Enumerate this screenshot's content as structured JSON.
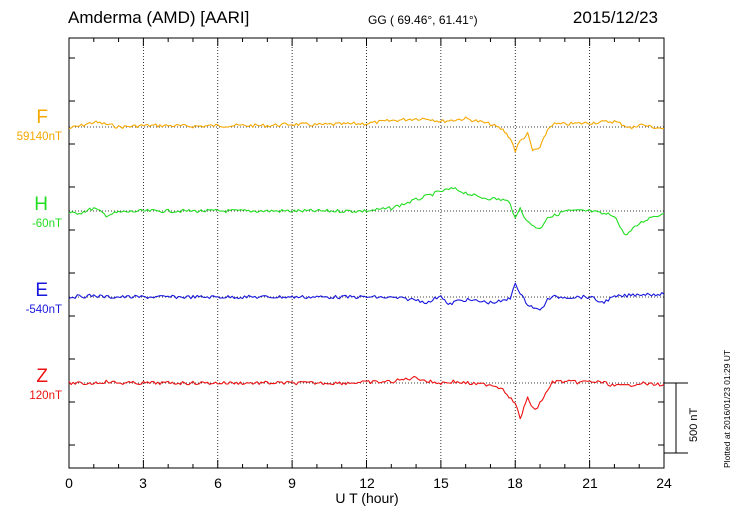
{
  "header": {
    "station": "Amderma (AMD)  [AARI]",
    "coords": "GG ( 69.46°,  61.41°)",
    "date": "2015/12/23"
  },
  "footer": {
    "plotted": "Plotted at 2016/01/23 01:29 UT",
    "scale": "500 nT"
  },
  "chart_data": {
    "type": "line",
    "xlabel": "U T (hour)",
    "xlim": [
      0,
      24
    ],
    "xticks": [
      "0",
      "3",
      "6",
      "9",
      "12",
      "15",
      "18",
      "21",
      "24"
    ],
    "scale_bar_nT": 500,
    "series": [
      {
        "name": "F",
        "baseline_label": "59140nT",
        "color": "#f5a800",
        "x": [
          0,
          0.5,
          1,
          1.5,
          2,
          3,
          4,
          5,
          6,
          7,
          8,
          9,
          10,
          11,
          12,
          13,
          14,
          14.5,
          15,
          15.5,
          16,
          16.5,
          17,
          17.5,
          17.8,
          18,
          18.2,
          18.5,
          18.7,
          19,
          19.3,
          19.5,
          20,
          21,
          22,
          22.3,
          22.7,
          23,
          23.5,
          24
        ],
        "y": [
          -10,
          10,
          35,
          20,
          0,
          10,
          10,
          5,
          10,
          10,
          10,
          20,
          15,
          20,
          25,
          45,
          60,
          60,
          40,
          50,
          60,
          40,
          20,
          -20,
          -80,
          -170,
          -100,
          -50,
          -170,
          -150,
          -20,
          20,
          20,
          30,
          40,
          20,
          -10,
          20,
          0,
          -10
        ]
      },
      {
        "name": "H",
        "baseline_label": "-60nT",
        "color": "#22dd22",
        "x": [
          0,
          0.5,
          1,
          1.5,
          2,
          3,
          4,
          5,
          6,
          7,
          8,
          9,
          10,
          11,
          12,
          13,
          13.5,
          14,
          14.5,
          15,
          15.5,
          16,
          16.5,
          17,
          17.5,
          17.8,
          18,
          18.2,
          18.5,
          19,
          19.3,
          19.5,
          20,
          21,
          21.5,
          22,
          22.3,
          22.5,
          23,
          23.5,
          24
        ],
        "y": [
          -20,
          -10,
          20,
          -30,
          -10,
          0,
          0,
          0,
          0,
          0,
          0,
          0,
          0,
          0,
          0,
          20,
          50,
          80,
          110,
          140,
          160,
          130,
          100,
          90,
          80,
          60,
          -60,
          20,
          -80,
          -130,
          -40,
          -40,
          0,
          0,
          -20,
          -30,
          -140,
          -170,
          -90,
          -40,
          -20
        ]
      },
      {
        "name": "E",
        "baseline_label": "-540nT",
        "color": "#1818dd",
        "x": [
          0,
          0.5,
          1,
          1.5,
          2,
          3,
          4,
          5,
          6,
          7,
          8,
          9,
          10,
          11,
          12,
          13,
          14,
          14.5,
          15,
          15.3,
          15.6,
          16,
          17,
          17.5,
          17.8,
          18,
          18.2,
          18.5,
          18.8,
          19,
          19.3,
          19.5,
          20,
          21,
          21.5,
          22,
          22.5,
          23,
          23.5,
          24
        ],
        "y": [
          0,
          5,
          10,
          0,
          0,
          0,
          0,
          0,
          0,
          0,
          0,
          0,
          0,
          0,
          0,
          -5,
          -20,
          -40,
          15,
          -60,
          -30,
          -20,
          -40,
          -30,
          -10,
          110,
          20,
          -50,
          -80,
          -100,
          -20,
          0,
          0,
          0,
          -40,
          0,
          10,
          20,
          20,
          20
        ]
      },
      {
        "name": "Z",
        "baseline_label": "120nT",
        "color": "#ee1111",
        "x": [
          0,
          0.5,
          1,
          1.5,
          2,
          3,
          4,
          5,
          6,
          7,
          8,
          9,
          10,
          11,
          12,
          13,
          14,
          14.5,
          15,
          15.5,
          16,
          16.5,
          17,
          17.5,
          18,
          18.2,
          18.5,
          18.8,
          19,
          19.3,
          19.5,
          20,
          20.5,
          21,
          21.5,
          22,
          22.5,
          23,
          23.5,
          24
        ],
        "y": [
          0,
          -5,
          0,
          10,
          0,
          0,
          0,
          0,
          0,
          0,
          0,
          0,
          0,
          0,
          5,
          10,
          40,
          10,
          0,
          10,
          0,
          -10,
          -10,
          -40,
          -150,
          -250,
          -110,
          -200,
          -140,
          -60,
          10,
          10,
          5,
          10,
          5,
          -20,
          -20,
          0,
          -10,
          -10
        ]
      }
    ]
  }
}
